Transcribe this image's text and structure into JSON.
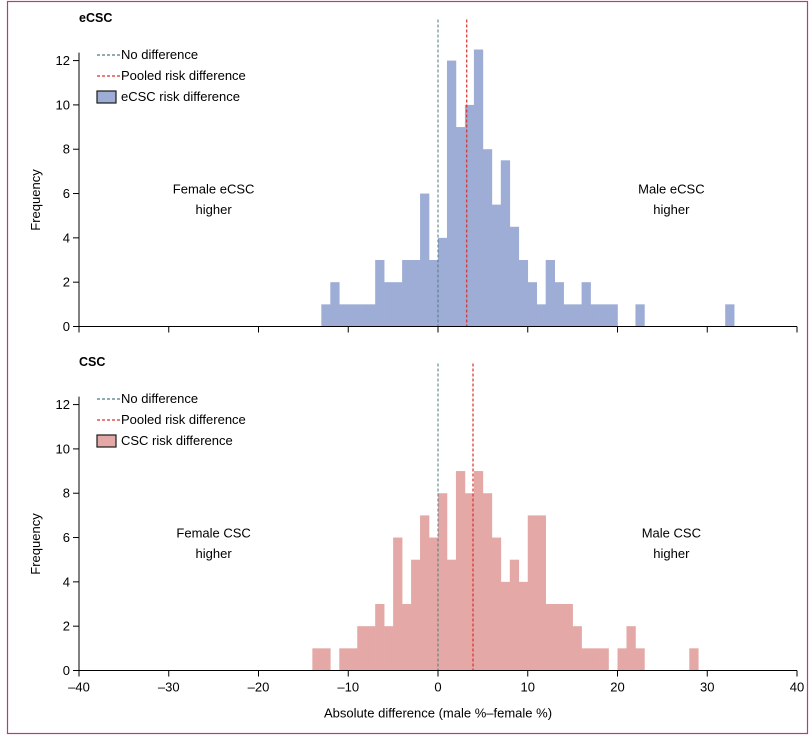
{
  "chart_data": [
    {
      "type": "bar",
      "title": "eCSC",
      "xlabel": "",
      "ylabel": "Frequency",
      "xlim": [
        -40,
        40
      ],
      "ylim": [
        0,
        12.5
      ],
      "xticks": [
        -40,
        -30,
        -20,
        -10,
        0,
        10,
        20,
        30,
        40
      ],
      "yticks": [
        0,
        2,
        4,
        6,
        8,
        10,
        12
      ],
      "bin_width": 1,
      "bar_color": "#9eadd5",
      "no_difference": 0,
      "pooled_risk_difference": 3.2,
      "annotations": [
        {
          "text": [
            "Female eCSC",
            "higher"
          ],
          "x": -25,
          "y": 6
        },
        {
          "text": [
            "Male eCSC",
            "higher"
          ],
          "x": 26,
          "y": 6
        }
      ],
      "legend": {
        "position": "top-left",
        "items": [
          {
            "label": "No difference",
            "type": "dashed-line",
            "color": "#4d7b80"
          },
          {
            "label": "Pooled risk difference",
            "type": "dashed-line",
            "color": "#d9302c"
          },
          {
            "label": "eCSC risk difference",
            "type": "patch",
            "color": "#9eadd5"
          }
        ]
      },
      "bins": [
        {
          "x": -13,
          "value": 1
        },
        {
          "x": -12,
          "value": 2
        },
        {
          "x": -11,
          "value": 1
        },
        {
          "x": -10,
          "value": 1
        },
        {
          "x": -9,
          "value": 1
        },
        {
          "x": -8,
          "value": 1
        },
        {
          "x": -7,
          "value": 3
        },
        {
          "x": -6,
          "value": 2
        },
        {
          "x": -5,
          "value": 2
        },
        {
          "x": -4,
          "value": 3
        },
        {
          "x": -3,
          "value": 3
        },
        {
          "x": -2,
          "value": 6
        },
        {
          "x": -1,
          "value": 3
        },
        {
          "x": 0,
          "value": 4
        },
        {
          "x": 1,
          "value": 12
        },
        {
          "x": 2,
          "value": 9
        },
        {
          "x": 3,
          "value": 10
        },
        {
          "x": 4,
          "value": 12.5
        },
        {
          "x": 5,
          "value": 8
        },
        {
          "x": 6,
          "value": 5.5
        },
        {
          "x": 7,
          "value": 7.5
        },
        {
          "x": 8,
          "value": 4.5
        },
        {
          "x": 9,
          "value": 3
        },
        {
          "x": 10,
          "value": 2
        },
        {
          "x": 11,
          "value": 1
        },
        {
          "x": 12,
          "value": 3
        },
        {
          "x": 13,
          "value": 2
        },
        {
          "x": 14,
          "value": 1
        },
        {
          "x": 15,
          "value": 1
        },
        {
          "x": 16,
          "value": 2
        },
        {
          "x": 17,
          "value": 1
        },
        {
          "x": 18,
          "value": 1
        },
        {
          "x": 19,
          "value": 1
        },
        {
          "x": 22,
          "value": 1
        },
        {
          "x": 32,
          "value": 1
        }
      ]
    },
    {
      "type": "bar",
      "title": "CSC",
      "xlabel": "Absolute difference (male %–female %)",
      "ylabel": "Frequency",
      "xlim": [
        -40,
        40
      ],
      "ylim": [
        0,
        12.5
      ],
      "xticks": [
        -40,
        -30,
        -20,
        -10,
        0,
        10,
        20,
        30,
        40
      ],
      "yticks": [
        0,
        2,
        4,
        6,
        8,
        10,
        12
      ],
      "bin_width": 1,
      "bar_color": "#e4a9a6",
      "no_difference": 0,
      "pooled_risk_difference": 3.9,
      "annotations": [
        {
          "text": [
            "Female CSC",
            "higher"
          ],
          "x": -25,
          "y": 6
        },
        {
          "text": [
            "Male CSC",
            "higher"
          ],
          "x": 26,
          "y": 6
        }
      ],
      "legend": {
        "position": "top-left",
        "items": [
          {
            "label": "No difference",
            "type": "dashed-line",
            "color": "#4d7b80"
          },
          {
            "label": "Pooled risk difference",
            "type": "dashed-line",
            "color": "#d9302c"
          },
          {
            "label": "CSC risk difference",
            "type": "patch",
            "color": "#e4a9a6"
          }
        ]
      },
      "bins": [
        {
          "x": -14,
          "value": 1
        },
        {
          "x": -13,
          "value": 1
        },
        {
          "x": -11,
          "value": 1
        },
        {
          "x": -10,
          "value": 1
        },
        {
          "x": -9,
          "value": 2
        },
        {
          "x": -8,
          "value": 2
        },
        {
          "x": -7,
          "value": 3
        },
        {
          "x": -6,
          "value": 2
        },
        {
          "x": -5,
          "value": 6
        },
        {
          "x": -4,
          "value": 3
        },
        {
          "x": -3,
          "value": 5
        },
        {
          "x": -2,
          "value": 7
        },
        {
          "x": -1,
          "value": 6
        },
        {
          "x": 0,
          "value": 8
        },
        {
          "x": 1,
          "value": 5
        },
        {
          "x": 2,
          "value": 9
        },
        {
          "x": 3,
          "value": 8
        },
        {
          "x": 4,
          "value": 9
        },
        {
          "x": 5,
          "value": 8
        },
        {
          "x": 6,
          "value": 6
        },
        {
          "x": 7,
          "value": 4
        },
        {
          "x": 8,
          "value": 5
        },
        {
          "x": 9,
          "value": 4
        },
        {
          "x": 10,
          "value": 7
        },
        {
          "x": 11,
          "value": 7
        },
        {
          "x": 12,
          "value": 3
        },
        {
          "x": 13,
          "value": 3
        },
        {
          "x": 14,
          "value": 3
        },
        {
          "x": 15,
          "value": 2
        },
        {
          "x": 16,
          "value": 1
        },
        {
          "x": 17,
          "value": 1
        },
        {
          "x": 18,
          "value": 1
        },
        {
          "x": 20,
          "value": 1
        },
        {
          "x": 21,
          "value": 2
        },
        {
          "x": 22,
          "value": 1
        },
        {
          "x": 28,
          "value": 1
        }
      ]
    }
  ]
}
